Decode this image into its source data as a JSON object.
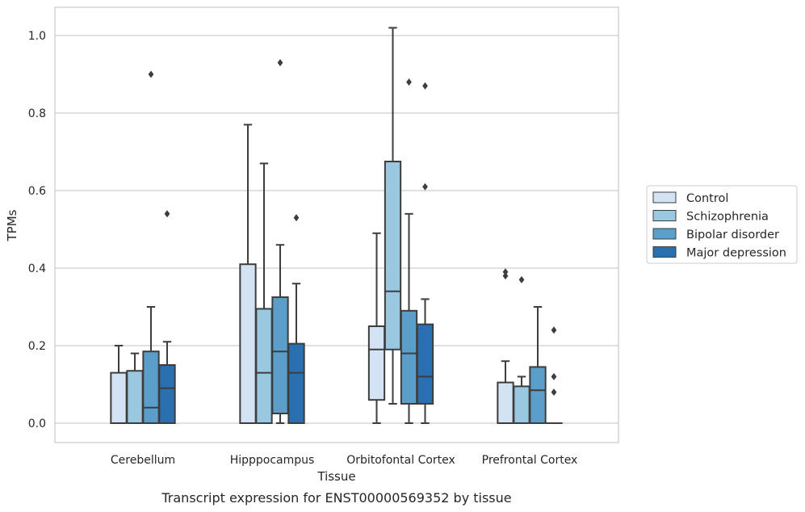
{
  "chart_data": {
    "type": "box",
    "title": "",
    "caption": "Transcript expression for ENST00000569352 by tissue",
    "xlabel": "Tissue",
    "ylabel": "TPMs",
    "ylim": [
      -0.05,
      1.07
    ],
    "yticks": [
      0.0,
      0.2,
      0.4,
      0.6,
      0.8,
      1.0
    ],
    "ytick_labels": [
      "0.0",
      "0.2",
      "0.4",
      "0.6",
      "0.8",
      "1.0"
    ],
    "grid": "horizontal",
    "legend_position": "right",
    "categories": [
      "Cerebellum",
      "Hipppocampus",
      "Orbitofontal Cortex",
      "Prefrontal Cortex"
    ],
    "series": [
      {
        "name": "Control",
        "color": "#d3e3f3",
        "boxes": [
          {
            "whislo": 0.0,
            "q1": 0.0,
            "med": 0.0,
            "q3": 0.13,
            "whishi": 0.2,
            "fliers": []
          },
          {
            "whislo": 0.0,
            "q1": 0.0,
            "med": 0.0,
            "q3": 0.41,
            "whishi": 0.77,
            "fliers": []
          },
          {
            "whislo": 0.0,
            "q1": 0.06,
            "med": 0.19,
            "q3": 0.25,
            "whishi": 0.49,
            "fliers": []
          },
          {
            "whislo": 0.0,
            "q1": 0.0,
            "med": 0.0,
            "q3": 0.105,
            "whishi": 0.16,
            "fliers": [
              0.38,
              0.39
            ]
          }
        ]
      },
      {
        "name": "Schizophrenia",
        "color": "#9ac8e0",
        "boxes": [
          {
            "whislo": 0.0,
            "q1": 0.0,
            "med": 0.0,
            "q3": 0.135,
            "whishi": 0.18,
            "fliers": []
          },
          {
            "whislo": 0.0,
            "q1": 0.0,
            "med": 0.13,
            "q3": 0.295,
            "whishi": 0.67,
            "fliers": []
          },
          {
            "whislo": 0.05,
            "q1": 0.19,
            "med": 0.34,
            "q3": 0.675,
            "whishi": 1.02,
            "fliers": []
          },
          {
            "whislo": 0.0,
            "q1": 0.0,
            "med": 0.0,
            "q3": 0.095,
            "whishi": 0.12,
            "fliers": [
              0.37
            ]
          }
        ]
      },
      {
        "name": "Bipolar disorder",
        "color": "#5a9ec9",
        "boxes": [
          {
            "whislo": 0.0,
            "q1": 0.0,
            "med": 0.04,
            "q3": 0.185,
            "whishi": 0.3,
            "fliers": [
              0.9
            ]
          },
          {
            "whislo": 0.0,
            "q1": 0.025,
            "med": 0.185,
            "q3": 0.325,
            "whishi": 0.46,
            "fliers": [
              0.93
            ]
          },
          {
            "whislo": 0.0,
            "q1": 0.05,
            "med": 0.18,
            "q3": 0.29,
            "whishi": 0.54,
            "fliers": [
              0.88
            ]
          },
          {
            "whislo": 0.0,
            "q1": 0.0,
            "med": 0.085,
            "q3": 0.145,
            "whishi": 0.3,
            "fliers": []
          }
        ]
      },
      {
        "name": "Major depression",
        "color": "#2a6fb0",
        "boxes": [
          {
            "whislo": 0.0,
            "q1": 0.0,
            "med": 0.09,
            "q3": 0.15,
            "whishi": 0.21,
            "fliers": [
              0.54
            ]
          },
          {
            "whislo": 0.0,
            "q1": 0.0,
            "med": 0.13,
            "q3": 0.205,
            "whishi": 0.36,
            "fliers": [
              0.53
            ]
          },
          {
            "whislo": 0.0,
            "q1": 0.05,
            "med": 0.12,
            "q3": 0.255,
            "whishi": 0.32,
            "fliers": [
              0.61,
              0.87
            ]
          },
          {
            "whislo": 0.0,
            "q1": 0.0,
            "med": 0.0,
            "q3": 0.0,
            "whishi": 0.0,
            "fliers": [
              0.08,
              0.12,
              0.24
            ]
          }
        ]
      }
    ]
  }
}
